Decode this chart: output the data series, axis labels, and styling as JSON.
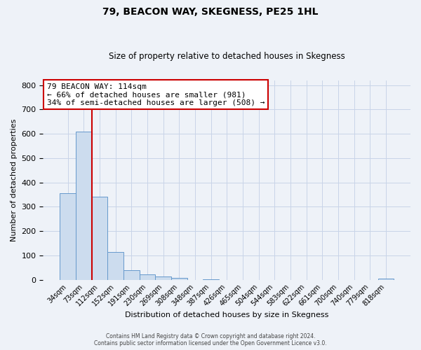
{
  "title": "79, BEACON WAY, SKEGNESS, PE25 1HL",
  "subtitle": "Size of property relative to detached houses in Skegness",
  "xlabel": "Distribution of detached houses by size in Skegness",
  "ylabel": "Number of detached properties",
  "bar_labels": [
    "34sqm",
    "73sqm",
    "112sqm",
    "152sqm",
    "191sqm",
    "230sqm",
    "269sqm",
    "308sqm",
    "348sqm",
    "387sqm",
    "426sqm",
    "465sqm",
    "504sqm",
    "544sqm",
    "583sqm",
    "622sqm",
    "661sqm",
    "700sqm",
    "740sqm",
    "779sqm",
    "818sqm"
  ],
  "bar_values": [
    355,
    610,
    340,
    113,
    40,
    22,
    14,
    8,
    0,
    3,
    0,
    0,
    0,
    0,
    0,
    0,
    0,
    0,
    0,
    0,
    4
  ],
  "bar_color": "#ccdcee",
  "bar_edge_color": "#6699cc",
  "vline_x_idx": 2,
  "vline_color": "#cc0000",
  "ylim": [
    0,
    820
  ],
  "yticks": [
    0,
    100,
    200,
    300,
    400,
    500,
    600,
    700,
    800
  ],
  "annotation_title": "79 BEACON WAY: 114sqm",
  "annotation_line1": "← 66% of detached houses are smaller (981)",
  "annotation_line2": "34% of semi-detached houses are larger (508) →",
  "annotation_box_color": "#cc0000",
  "grid_color": "#c8d4e8",
  "background_color": "#eef2f8",
  "footer_line1": "Contains HM Land Registry data © Crown copyright and database right 2024.",
  "footer_line2": "Contains public sector information licensed under the Open Government Licence v3.0."
}
